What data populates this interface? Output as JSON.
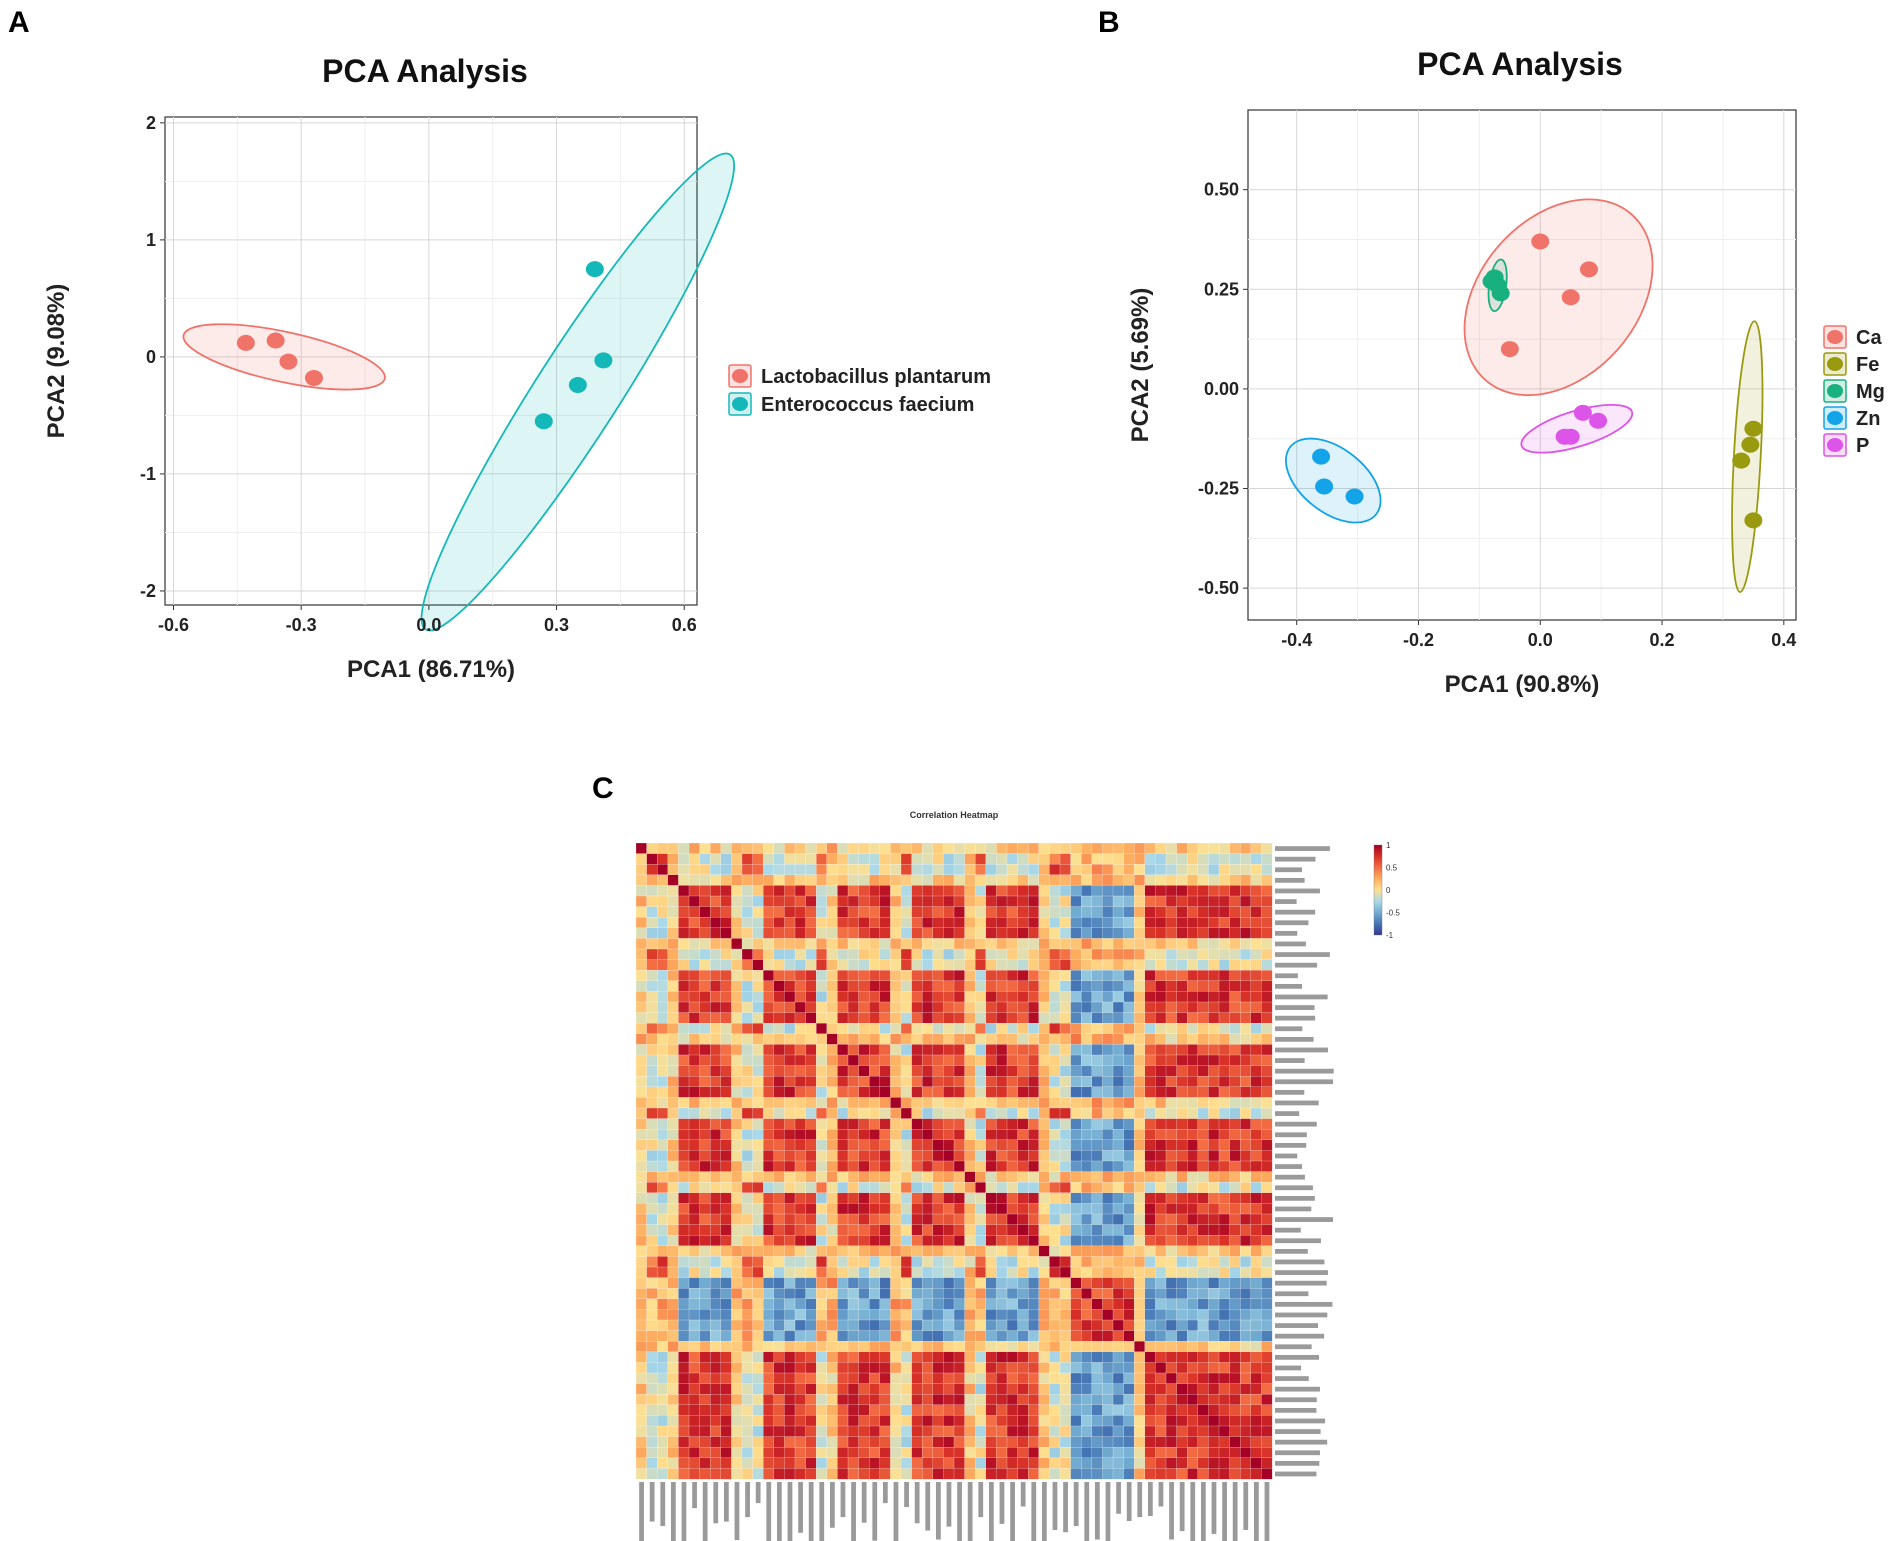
{
  "panels": {
    "a": {
      "letter": "A"
    },
    "b": {
      "letter": "B"
    },
    "c": {
      "letter": "C"
    }
  },
  "colors": {
    "lactobacillus": "#f0736a",
    "enterococcus": "#14b8b8",
    "ca": "#f0736a",
    "fe": "#9a9a10",
    "mg": "#18b07e",
    "zn": "#12a3e8",
    "p": "#dd55e8"
  },
  "chart_data": [
    {
      "id": "pca-a",
      "type": "scatter",
      "title": "PCA Analysis",
      "xlabel": "PCA1 (86.71%)",
      "ylabel": "PCA2 (9.08%)",
      "xlim": [
        -0.62,
        0.63
      ],
      "ylim": [
        -2.12,
        2.05
      ],
      "xticks": [
        -0.6,
        -0.3,
        0.0,
        0.3,
        0.6
      ],
      "xtick_labels": [
        "-0.6",
        "-0.3",
        "0.0",
        "0.3",
        "0.6"
      ],
      "yticks": [
        -2,
        -1,
        0,
        1,
        2
      ],
      "ytick_labels": [
        "-2",
        "-1",
        "0",
        "1",
        "2"
      ],
      "grid": true,
      "legend_position": "right",
      "series": [
        {
          "name": "Lactobacillus plantarum",
          "color_key": "lactobacillus",
          "points": [
            [
              -0.43,
              0.12
            ],
            [
              -0.36,
              0.14
            ],
            [
              -0.33,
              -0.04
            ],
            [
              -0.27,
              -0.18
            ]
          ],
          "ellipse": {
            "center": [
              -0.34,
              0.0
            ],
            "semi_major": 0.3,
            "semi_minor": 0.09,
            "angle_deg": -38
          }
        },
        {
          "name": "Enterococcus faecium",
          "color_key": "enterococcus",
          "points": [
            [
              0.39,
              0.75
            ],
            [
              0.41,
              -0.03
            ],
            [
              0.35,
              -0.24
            ],
            [
              0.27,
              -0.55
            ]
          ],
          "ellipse": {
            "center": [
              0.35,
              -0.3
            ],
            "semi_major": 2.06,
            "semi_minor": 0.1,
            "angle_deg": 80
          }
        }
      ]
    },
    {
      "id": "pca-b",
      "type": "scatter",
      "title": "PCA Analysis",
      "xlabel": "PCA1 (90.8%)",
      "ylabel": "PCA2 (5.69%)",
      "xlim": [
        -0.48,
        0.42
      ],
      "ylim": [
        -0.58,
        0.7
      ],
      "xticks": [
        -0.4,
        -0.2,
        0.0,
        0.2,
        0.4
      ],
      "xtick_labels": [
        "-0.4",
        "-0.2",
        "0.0",
        "0.2",
        "0.4"
      ],
      "yticks": [
        -0.5,
        -0.25,
        0.0,
        0.25,
        0.5
      ],
      "ytick_labels": [
        "-0.50",
        "-0.25",
        "0.00",
        "0.25",
        "0.50"
      ],
      "grid": true,
      "legend_position": "right",
      "series": [
        {
          "name": "Ca",
          "color_key": "ca",
          "points": [
            [
              0.0,
              0.37
            ],
            [
              0.08,
              0.3
            ],
            [
              0.05,
              0.23
            ],
            [
              -0.05,
              0.1
            ]
          ],
          "ellipse": {
            "center": [
              0.03,
              0.23
            ],
            "semi_major": 0.24,
            "semi_minor": 0.14,
            "angle_deg": 60
          }
        },
        {
          "name": "Fe",
          "color_key": "fe",
          "points": [
            [
              0.35,
              -0.1
            ],
            [
              0.345,
              -0.14
            ],
            [
              0.33,
              -0.18
            ],
            [
              0.35,
              -0.33
            ]
          ],
          "ellipse": {
            "center": [
              0.34,
              -0.17
            ],
            "semi_major": 0.34,
            "semi_minor": 0.022,
            "angle_deg": 88
          }
        },
        {
          "name": "Mg",
          "color_key": "mg",
          "points": [
            [
              -0.075,
              0.28
            ],
            [
              -0.07,
              0.26
            ],
            [
              -0.065,
              0.24
            ],
            [
              -0.08,
              0.27
            ]
          ],
          "ellipse": {
            "center": [
              -0.07,
              0.26
            ],
            "semi_major": 0.065,
            "semi_minor": 0.014,
            "angle_deg": 85
          }
        },
        {
          "name": "Zn",
          "color_key": "zn",
          "points": [
            [
              -0.36,
              -0.17
            ],
            [
              -0.355,
              -0.245
            ],
            [
              -0.305,
              -0.27
            ]
          ],
          "ellipse": {
            "center": [
              -0.34,
              -0.23
            ],
            "semi_major": 0.11,
            "semi_minor": 0.06,
            "angle_deg": -50
          }
        },
        {
          "name": "P",
          "color_key": "p",
          "points": [
            [
              0.07,
              -0.06
            ],
            [
              0.095,
              -0.08
            ],
            [
              0.05,
              -0.12
            ],
            [
              0.04,
              -0.12
            ]
          ],
          "ellipse": {
            "center": [
              0.06,
              -0.1
            ],
            "semi_major": 0.1,
            "semi_minor": 0.04,
            "angle_deg": 25
          }
        }
      ]
    },
    {
      "id": "heatmap-c",
      "type": "heatmap",
      "title": "Correlation Heatmap",
      "n": 60,
      "colorbar_ticks": [
        1,
        0.5,
        0,
        -0.5,
        -1
      ],
      "colorbar_tick_labels": [
        "1",
        "0.5",
        "0",
        "-0.5",
        "-1"
      ],
      "block_pattern": [
        0,
        1,
        1,
        0,
        2,
        2,
        2,
        2,
        2,
        0,
        1,
        1,
        2,
        2,
        2,
        2,
        2,
        1,
        0,
        2,
        2,
        2,
        2,
        2,
        0,
        1,
        2,
        2,
        2,
        2,
        2,
        0,
        1,
        2,
        2,
        2,
        2,
        2,
        0,
        1,
        1,
        3,
        3,
        3,
        3,
        3,
        3,
        0,
        2,
        2,
        2,
        2,
        2,
        2,
        2,
        2,
        2,
        2,
        2,
        2
      ]
    }
  ]
}
